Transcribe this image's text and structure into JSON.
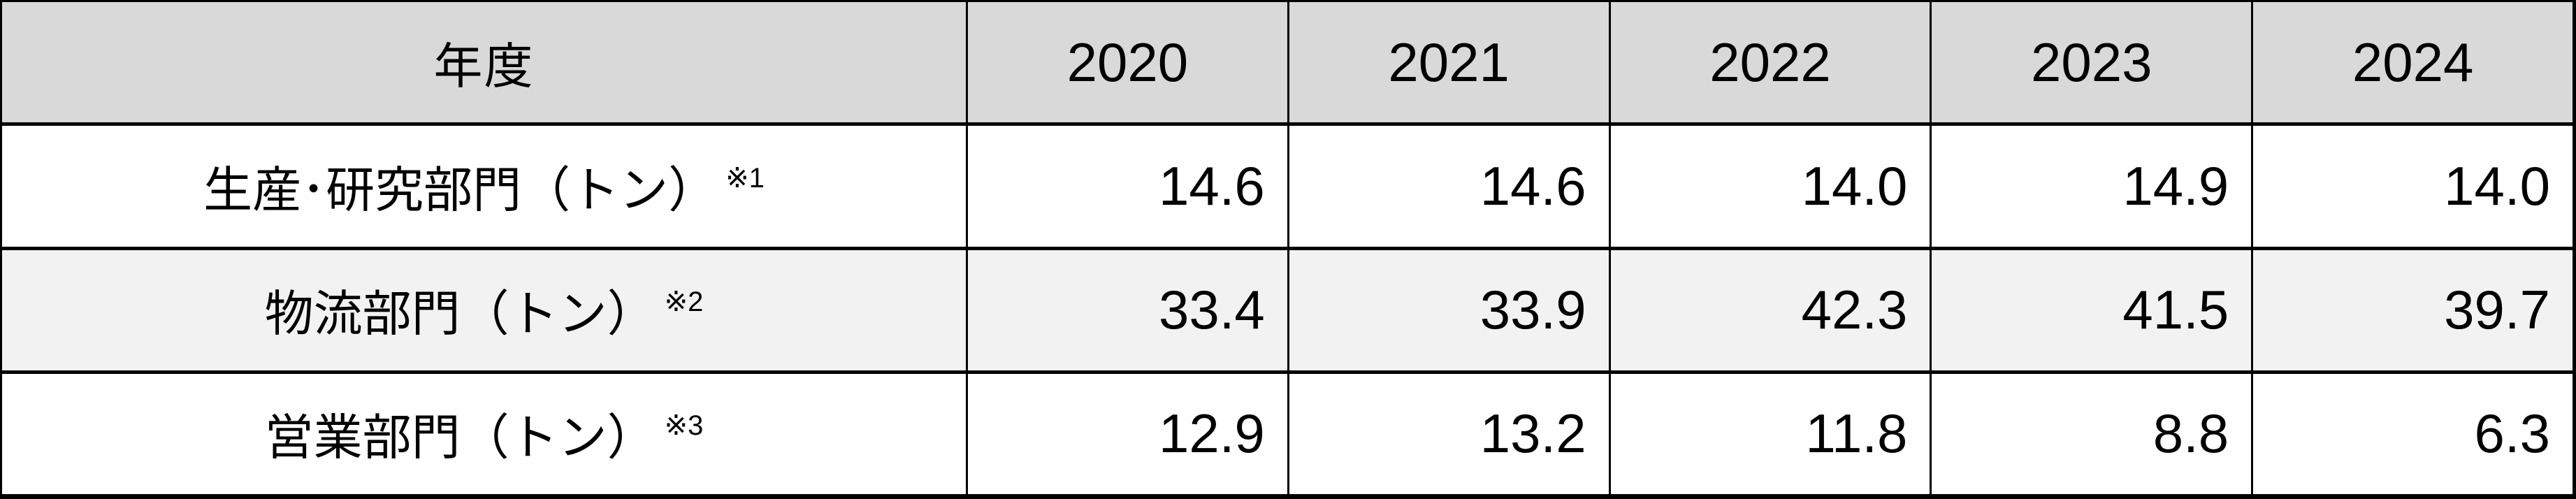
{
  "table": {
    "header": {
      "corner_label": "年度",
      "years": [
        "2020",
        "2021",
        "2022",
        "2023",
        "2024"
      ]
    },
    "rows": [
      {
        "label": "生産･研究部門（トン）",
        "note_ref": "※1",
        "values": [
          "14.6",
          "14.6",
          "14.0",
          "14.9",
          "14.0"
        ]
      },
      {
        "label": "物流部門（トン）",
        "note_ref": "※2",
        "values": [
          "33.4",
          "33.9",
          "42.3",
          "41.5",
          "39.7"
        ]
      },
      {
        "label": "営業部門（トン）",
        "note_ref": "※3",
        "values": [
          "12.9",
          "13.2",
          "11.8",
          "8.8",
          "6.3"
        ]
      }
    ]
  },
  "colors": {
    "header_bg": "#d9d9d9",
    "stripe_bg": "#f2f2f2",
    "row_bg": "#ffffff",
    "border": "#000000",
    "text": "#000000"
  },
  "chart_data": {
    "type": "table",
    "title": "",
    "corner_header": "年度",
    "categories": [
      "2020",
      "2021",
      "2022",
      "2023",
      "2024"
    ],
    "series": [
      {
        "name": "生産･研究部門（トン）※1",
        "values": [
          14.6,
          14.6,
          14.0,
          14.9,
          14.0
        ]
      },
      {
        "name": "物流部門（トン）※2",
        "values": [
          33.4,
          33.9,
          42.3,
          41.5,
          39.7
        ]
      },
      {
        "name": "営業部門（トン）※3",
        "values": [
          12.9,
          13.2,
          11.8,
          8.8,
          6.3
        ]
      }
    ],
    "unit_label": "トン",
    "layout": {
      "striped_rows": true,
      "grid": "full-borders",
      "value_align": "right"
    }
  }
}
